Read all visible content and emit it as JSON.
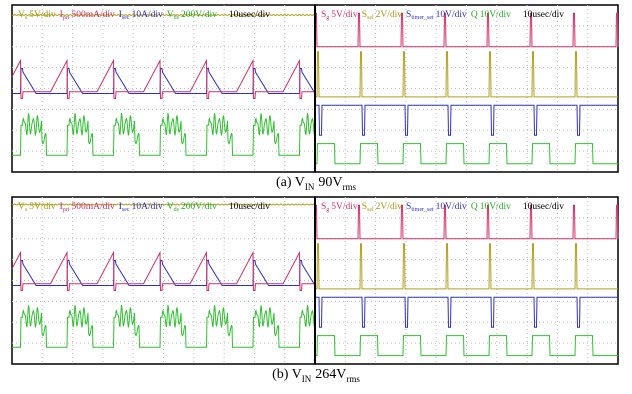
{
  "panels": [
    {
      "left_labels": [
        {
          "symbol": "V",
          "sub": "s",
          "scale": "5V/div",
          "color": "#a89a10"
        },
        {
          "symbol": "I",
          "sub": "pri",
          "scale": "500mA/div",
          "color": "#d0306a"
        },
        {
          "symbol": "I",
          "sub": "sec",
          "scale": "10A/div",
          "color": "#3030c0"
        },
        {
          "symbol": "V",
          "sub": "ds",
          "scale": "200V/div",
          "color": "#28a828"
        }
      ],
      "left_timebase": "10usec/div",
      "right_labels": [
        {
          "symbol": "S",
          "sub": "g",
          "scale": "5V/div",
          "color": "#d0306a"
        },
        {
          "symbol": "S",
          "sub": "sel",
          "scale": "2V/div",
          "color": "#a89a10"
        },
        {
          "symbol": "S",
          "sub": "timer_set",
          "scale": "10V/div",
          "color": "#3030c0"
        },
        {
          "symbol": "Q",
          "sub": "",
          "scale": "10V/div",
          "color": "#28a828"
        }
      ],
      "right_timebase": "10usec/div",
      "caption": {
        "prefix": "(a) V",
        "sub": "IN",
        "value": "90V",
        "unit_sub": "rms"
      }
    },
    {
      "left_labels": [
        {
          "symbol": "V",
          "sub": "s",
          "scale": "5V/div",
          "color": "#a89a10"
        },
        {
          "symbol": "I",
          "sub": "pri",
          "scale": "500mA/div",
          "color": "#d0306a"
        },
        {
          "symbol": "I",
          "sub": "sec",
          "scale": "10A/div",
          "color": "#3030c0"
        },
        {
          "symbol": "V",
          "sub": "ds",
          "scale": "200V/div",
          "color": "#28a828"
        }
      ],
      "left_timebase": "10usec/div",
      "right_labels": [
        {
          "symbol": "S",
          "sub": "g",
          "scale": "5V/div",
          "color": "#d0306a"
        },
        {
          "symbol": "S",
          "sub": "sel",
          "scale": "2V/div",
          "color": "#a89a10"
        },
        {
          "symbol": "S",
          "sub": "timer_set",
          "scale": "10V/div",
          "color": "#3030c0"
        },
        {
          "symbol": "Q",
          "sub": "",
          "scale": "10V/div",
          "color": "#28a828"
        }
      ],
      "right_timebase": "10usec/div",
      "caption": {
        "prefix": "(b) V",
        "sub": "IN",
        "value": "264V",
        "unit_sub": "rms"
      }
    }
  ]
}
